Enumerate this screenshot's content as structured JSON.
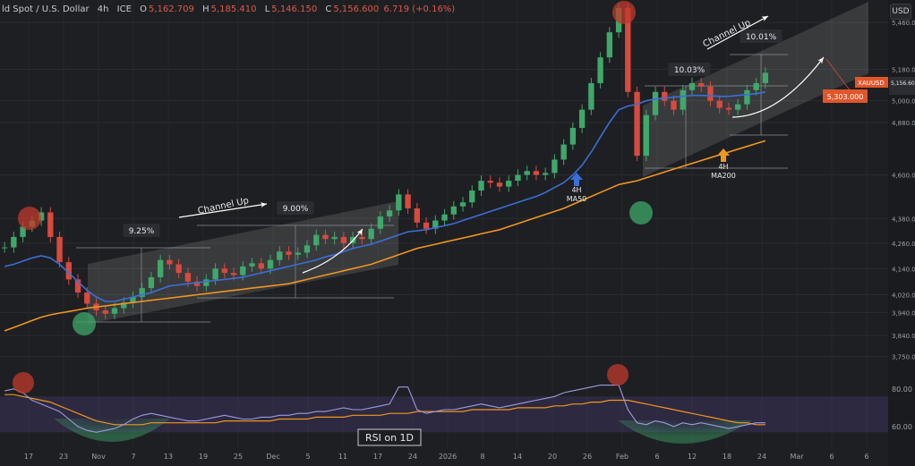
{
  "header": {
    "symbol": "ld Spot / U.S. Dollar",
    "timeframe": "4h",
    "exchange": "ICE",
    "o_label": "O",
    "o_value": "5,162.709",
    "h_label": "H",
    "h_value": "5,185.410",
    "l_label": "L",
    "l_value": "5,146.150",
    "c_label": "C",
    "c_value": "5,156.600",
    "change": "6.719 (+0.16%)"
  },
  "currency_button": "USD",
  "colors": {
    "background": "#1e1f22",
    "ma50": "#3a6fd8",
    "ma200": "#f0961e",
    "bull_candle": "#3fa86a",
    "bear_candle": "#d84a3e",
    "channel_fill": "#ffffff",
    "price_tag": "#e0562a",
    "rsi_line": "#9b9be0",
    "rsi_ma": "#f0961e",
    "rsi_band": "#4a3d78",
    "marker_red": "#c0392b",
    "marker_green": "#3fa86a"
  },
  "chart_data": [
    {
      "type": "line",
      "title": "",
      "xlabel": "",
      "ylabel": "",
      "ylim": [
        3700,
        5600
      ],
      "y_scale": "log",
      "price_ticks": [
        "5,460.000",
        "5,180.000",
        "5,000.000",
        "4,880.000",
        "4,600.000",
        "4,380.000",
        "4,260.000",
        "4,140.000",
        "4,020.000",
        "3,940.000",
        "3,840.000",
        "3,750.000"
      ],
      "price_tick_values": [
        5460,
        5180,
        5000,
        4880,
        4600,
        4380,
        4260,
        4140,
        4020,
        3940,
        3840,
        3750
      ],
      "date_ticks": [
        "17",
        "23",
        "Nov",
        "7",
        "13",
        "19",
        "25",
        "Dec",
        "5",
        "11",
        "17",
        "24",
        "2026",
        "8",
        "14",
        "20",
        "26",
        "Feb",
        "6",
        "12",
        "18",
        "24",
        "Mar",
        "6",
        "6"
      ],
      "grid": true,
      "price_label": "XAUUSD",
      "last_price": "5,156.600",
      "target_price": "5,303.000",
      "series": [
        {
          "name": "",
          "values": [
            4240,
            4290,
            4340,
            4370,
            4410,
            4290,
            4170,
            4090,
            4030,
            3980,
            3950,
            3935,
            3960,
            3985,
            4010,
            4050,
            4100,
            4180,
            4160,
            4120,
            4080,
            4060,
            4090,
            4140,
            4120,
            4110,
            4150,
            4165,
            4140,
            4180,
            4220,
            4205,
            4215,
            4250,
            4300,
            4280,
            4290,
            4260,
            4290,
            4280,
            4330,
            4390,
            4420,
            4500,
            4430,
            4360,
            4330,
            4370,
            4400,
            4440,
            4460,
            4520,
            4570,
            4560,
            4540,
            4570,
            4600,
            4620,
            4600,
            4610,
            4680,
            4760,
            4850,
            4950,
            5100,
            5250,
            5400,
            5550,
            5050,
            4700,
            4920,
            5050,
            5000,
            4950,
            5060,
            5100,
            5080,
            5000,
            4960,
            4950,
            4980,
            5060,
            5100,
            5160
          ]
        },
        {
          "name": "4H MA50",
          "values": [
            4150,
            4160,
            4175,
            4190,
            4200,
            4190,
            4160,
            4120,
            4080,
            4040,
            4010,
            3990,
            3990,
            4000,
            4010,
            4020,
            4030,
            4045,
            4060,
            4065,
            4070,
            4075,
            4080,
            4085,
            4090,
            4095,
            4100,
            4110,
            4120,
            4130,
            4140,
            4150,
            4160,
            4170,
            4180,
            4195,
            4205,
            4220,
            4235,
            4245,
            4255,
            4270,
            4285,
            4300,
            4315,
            4320,
            4325,
            4335,
            4345,
            4355,
            4370,
            4385,
            4400,
            4415,
            4430,
            4445,
            4460,
            4475,
            4490,
            4510,
            4535,
            4560,
            4600,
            4650,
            4720,
            4800,
            4880,
            4950,
            4970,
            4980,
            5000,
            5010,
            5015,
            5020,
            5025,
            5030,
            5030,
            5028,
            5025,
            5025,
            5030,
            5035,
            5040,
            5050
          ]
        },
        {
          "name": "4H MA200",
          "values": [
            3860,
            3875,
            3890,
            3905,
            3920,
            3930,
            3938,
            3945,
            3952,
            3960,
            3965,
            3970,
            3975,
            3980,
            3985,
            3990,
            3995,
            4000,
            4005,
            4010,
            4015,
            4020,
            4025,
            4030,
            4035,
            4040,
            4045,
            4050,
            4055,
            4060,
            4065,
            4070,
            4080,
            4090,
            4100,
            4110,
            4120,
            4130,
            4140,
            4150,
            4160,
            4175,
            4190,
            4205,
            4220,
            4235,
            4245,
            4255,
            4265,
            4275,
            4285,
            4295,
            4305,
            4315,
            4325,
            4340,
            4355,
            4370,
            4385,
            4400,
            4415,
            4430,
            4450,
            4470,
            4490,
            4510,
            4530,
            4550,
            4560,
            4570,
            4585,
            4600,
            4615,
            4630,
            4645,
            4660,
            4675,
            4690,
            4705,
            4720,
            4735,
            4750,
            4765,
            4780
          ]
        }
      ],
      "annotations": [
        {
          "text": "Channel Up"
        },
        {
          "text": "9.25%"
        },
        {
          "text": "9.00%"
        },
        {
          "text": "Channel Up"
        },
        {
          "text": "10.03%"
        },
        {
          "text": "10.01%"
        },
        {
          "text": "4H\nMA50"
        },
        {
          "text": "4H\nMA200"
        }
      ]
    },
    {
      "type": "line",
      "title": "RSI on 1D",
      "ylim": [
        50,
        88
      ],
      "rsi_ticks": [
        "80.00",
        "60.00"
      ],
      "rsi_tick_values": [
        80,
        60
      ],
      "band": [
        57,
        76
      ],
      "series": [
        {
          "name": "",
          "values": [
            79,
            80,
            78,
            74,
            72,
            70,
            68,
            64,
            60,
            58,
            57,
            58,
            59,
            61,
            64,
            66,
            67,
            66,
            65,
            64,
            63,
            63,
            64,
            65,
            66,
            65,
            64,
            64,
            65,
            65,
            66,
            66,
            67,
            67,
            68,
            68,
            69,
            70,
            69,
            69,
            70,
            71,
            72,
            81,
            81,
            69,
            67,
            68,
            69,
            69,
            70,
            71,
            72,
            71,
            70,
            71,
            72,
            73,
            74,
            75,
            76,
            78,
            79,
            80,
            81,
            82,
            82,
            82,
            69,
            62,
            61,
            63,
            62,
            60,
            62,
            61,
            62,
            61,
            60,
            59,
            60,
            61,
            62,
            62
          ]
        },
        {
          "name": "",
          "values": [
            77,
            77,
            76,
            75,
            74,
            73,
            71,
            69,
            67,
            65,
            63,
            62,
            61,
            61,
            61,
            61,
            62,
            62,
            62,
            62,
            62,
            62,
            62,
            62,
            63,
            63,
            63,
            63,
            63,
            63,
            64,
            64,
            64,
            64,
            65,
            65,
            65,
            65,
            66,
            66,
            66,
            66,
            67,
            67,
            67,
            68,
            68,
            68,
            68,
            68,
            68,
            69,
            69,
            69,
            69,
            69,
            70,
            70,
            70,
            70,
            71,
            71,
            72,
            72,
            73,
            73,
            74,
            74,
            74,
            73,
            72,
            71,
            70,
            69,
            68,
            67,
            66,
            65,
            64,
            63,
            62,
            62,
            61,
            61
          ]
        }
      ]
    }
  ]
}
